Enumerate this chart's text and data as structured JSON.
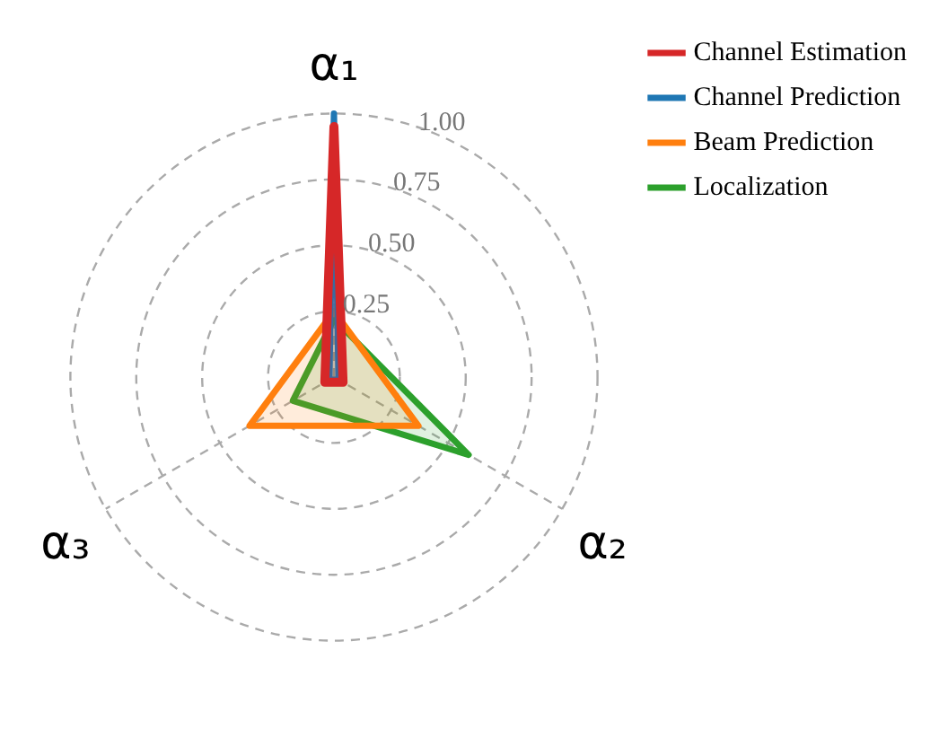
{
  "chart_data": {
    "type": "radar",
    "categories": [
      "α₁",
      "α₂",
      "α₃"
    ],
    "series": [
      {
        "name": "Channel Estimation",
        "color": "#d62728",
        "values": [
          0.95,
          0.04,
          0.04
        ]
      },
      {
        "name": "Channel Prediction",
        "color": "#1f77b4",
        "values": [
          1.0,
          0.02,
          0.02
        ]
      },
      {
        "name": "Beam Prediction",
        "color": "#ff7f0e",
        "values": [
          0.25,
          0.37,
          0.37
        ]
      },
      {
        "name": "Localization",
        "color": "#2ca02c",
        "values": [
          0.22,
          0.59,
          0.18
        ]
      }
    ],
    "ylim": [
      0,
      1
    ],
    "yticks": [
      {
        "value": 0.25,
        "label": "0.25"
      },
      {
        "value": 0.5,
        "label": "0.50"
      },
      {
        "value": 0.75,
        "label": "0.75"
      },
      {
        "value": 1,
        "label": "1.00"
      }
    ],
    "grid": true,
    "legend": "top right",
    "marker": "none",
    "line_style": "solid"
  }
}
